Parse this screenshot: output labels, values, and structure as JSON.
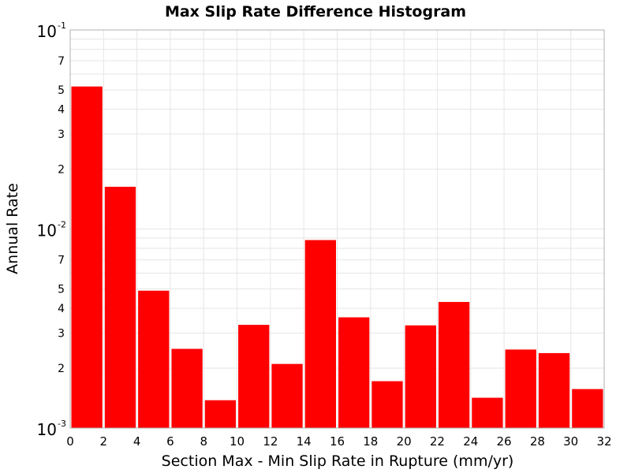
{
  "chart_data": {
    "type": "bar",
    "title": "Max Slip Rate Difference Histogram",
    "xlabel": "Section Max - Min Slip Rate in Rupture (mm/yr)",
    "ylabel": "Annual Rate",
    "xlim": [
      0,
      32
    ],
    "ylim": [
      0.001,
      0.1
    ],
    "yscale": "log",
    "grid": true,
    "bar_color": "#ff0000",
    "bin_width": 2,
    "x_ticks": [
      "0",
      "2",
      "4",
      "6",
      "8",
      "10",
      "12",
      "14",
      "16",
      "18",
      "20",
      "22",
      "24",
      "26",
      "28",
      "30",
      "32"
    ],
    "y_major_ticks": [
      {
        "base": "10",
        "exp": "-3",
        "value": 0.001
      },
      {
        "base": "10",
        "exp": "-2",
        "value": 0.01
      },
      {
        "base": "10",
        "exp": "-1",
        "value": 0.1
      }
    ],
    "y_minor_ticks": [
      {
        "label": "2",
        "value": 0.002
      },
      {
        "label": "3",
        "value": 0.003
      },
      {
        "label": "4",
        "value": 0.004
      },
      {
        "label": "5",
        "value": 0.005
      },
      {
        "label": "7",
        "value": 0.007
      },
      {
        "label": "2",
        "value": 0.02
      },
      {
        "label": "3",
        "value": 0.03
      },
      {
        "label": "4",
        "value": 0.04
      },
      {
        "label": "5",
        "value": 0.05
      },
      {
        "label": "7",
        "value": 0.07
      }
    ],
    "bins": [
      {
        "x_start": 0,
        "x_end": 2,
        "value": 0.052
      },
      {
        "x_start": 2,
        "x_end": 4,
        "value": 0.0163
      },
      {
        "x_start": 4,
        "x_end": 6,
        "value": 0.0049
      },
      {
        "x_start": 6,
        "x_end": 8,
        "value": 0.0025
      },
      {
        "x_start": 8,
        "x_end": 10,
        "value": 0.00138
      },
      {
        "x_start": 10,
        "x_end": 12,
        "value": 0.0033
      },
      {
        "x_start": 12,
        "x_end": 14,
        "value": 0.0021
      },
      {
        "x_start": 14,
        "x_end": 16,
        "value": 0.0088
      },
      {
        "x_start": 16,
        "x_end": 18,
        "value": 0.0036
      },
      {
        "x_start": 18,
        "x_end": 20,
        "value": 0.00172
      },
      {
        "x_start": 20,
        "x_end": 22,
        "value": 0.00328
      },
      {
        "x_start": 22,
        "x_end": 24,
        "value": 0.0043
      },
      {
        "x_start": 24,
        "x_end": 26,
        "value": 0.00142
      },
      {
        "x_start": 26,
        "x_end": 28,
        "value": 0.00248
      },
      {
        "x_start": 28,
        "x_end": 30,
        "value": 0.00238
      },
      {
        "x_start": 30,
        "x_end": 32,
        "value": 0.00157
      }
    ]
  }
}
